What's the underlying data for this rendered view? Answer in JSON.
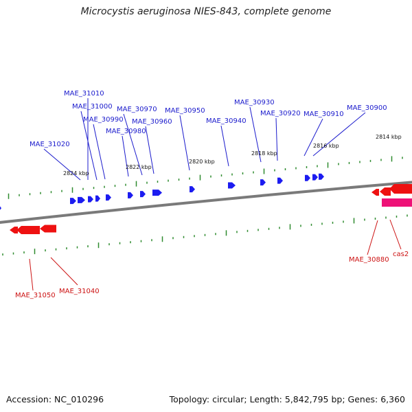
{
  "title": "Microcystis aeruginosa NIES-843, complete genome",
  "footer": {
    "accession": "Accession: NC_010296",
    "stats": "Topology: circular; Length: 5,842,795 bp; Genes: 6,360"
  },
  "colors": {
    "backbone": "#7a7a7a",
    "tick": "#2e8b2e",
    "forward_gene": "#1c1cf0",
    "reverse_gene": "#ee1111",
    "cas_gene": "#ee1177",
    "forward_label": "#1a1acc",
    "reverse_label": "#cc1111"
  },
  "position_labels": [
    "2824 kbp",
    "2822 kbp",
    "2820 kbp",
    "2818 kbp",
    "2816 kbp",
    "2814 kbp"
  ],
  "forward_genes": [
    "MAE_31010",
    "MAE_31000",
    "MAE_30990",
    "MAE_30970",
    "MAE_30980",
    "MAE_30960",
    "MAE_30950",
    "MAE_30930",
    "MAE_30940",
    "MAE_30920",
    "MAE_30910",
    "MAE_30900",
    "MAE_31020"
  ],
  "reverse_genes": [
    "MAE_31050",
    "MAE_31040",
    "MAE_30880",
    "cas2"
  ]
}
